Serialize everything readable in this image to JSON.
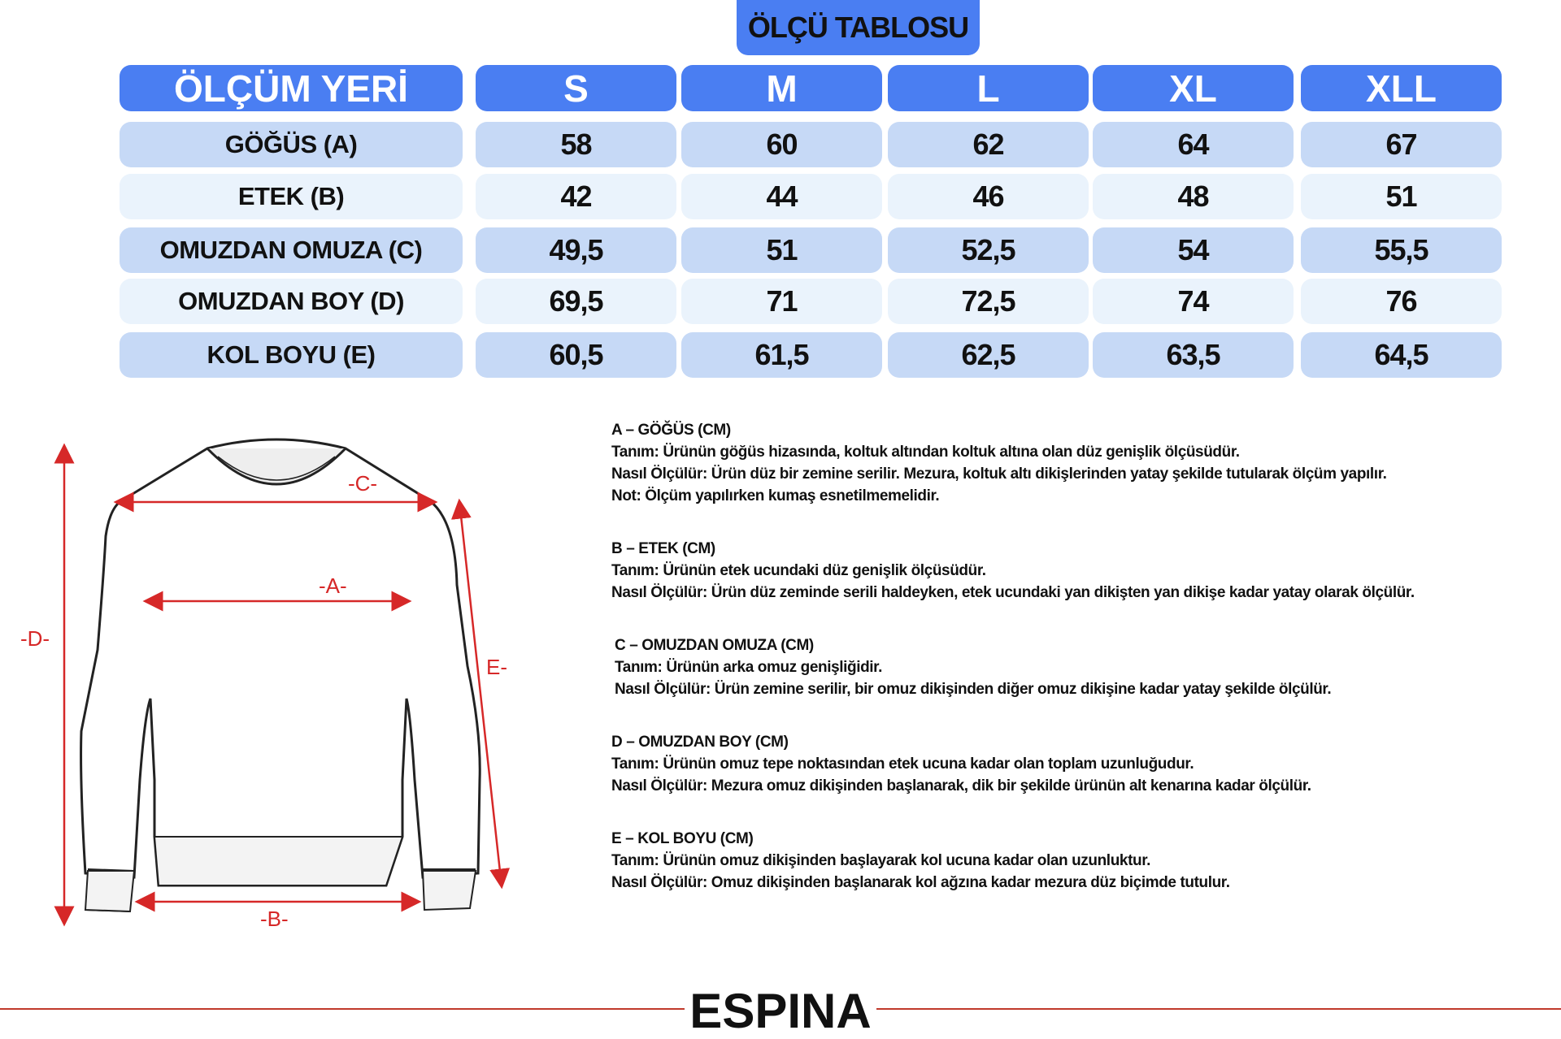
{
  "title": "ÖLÇÜ TABLOSU",
  "table": {
    "header_label": "ÖLÇÜM YERİ",
    "sizes": [
      "S",
      "M",
      "L",
      "XL",
      "XLL"
    ],
    "rows": [
      {
        "label": "GÖĞÜS (A)",
        "values": [
          "58",
          "60",
          "62",
          "64",
          "67"
        ]
      },
      {
        "label": "ETEK (B)",
        "values": [
          "42",
          "44",
          "46",
          "48",
          "51"
        ]
      },
      {
        "label": "OMUZDAN OMUZA (C)",
        "values": [
          "49,5",
          "51",
          "52,5",
          "54",
          "55,5"
        ]
      },
      {
        "label": "OMUZDAN BOY (D)",
        "values": [
          "69,5",
          "71",
          "72,5",
          "74",
          "76"
        ]
      },
      {
        "label": "KOL BOYU (E)",
        "values": [
          "60,5",
          "61,5",
          "62,5",
          "63,5",
          "64,5"
        ]
      }
    ]
  },
  "diagram": {
    "labels": {
      "a": "-A-",
      "b": "-B-",
      "c": "-C-",
      "d": "-D-",
      "e": "E-"
    }
  },
  "descriptions": [
    {
      "heading": "A – GÖĞÜS (CM)",
      "lines": [
        "Tanım: Ürünün göğüs hizasında, koltuk altından koltuk altına olan düz genişlik ölçüsüdür.",
        "Nasıl Ölçülür: Ürün düz bir zemine serilir. Mezura, koltuk altı dikişlerinden yatay şekilde tutularak ölçüm yapılır.",
        "Not: Ölçüm yapılırken kumaş esnetilmemelidir."
      ]
    },
    {
      "heading": "B – ETEK (CM)",
      "lines": [
        "Tanım: Ürünün etek ucundaki düz genişlik ölçüsüdür.",
        "Nasıl Ölçülür: Ürün düz zeminde serili haldeyken, etek ucundaki yan dikişten yan dikişe kadar yatay olarak ölçülür."
      ]
    },
    {
      "heading": "C – OMUZDAN OMUZA (CM)",
      "lines": [
        "Tanım: Ürünün arka omuz genişliğidir.",
        "Nasıl Ölçülür: Ürün zemine serilir, bir omuz dikişinden diğer omuz dikişine kadar yatay şekilde ölçülür."
      ]
    },
    {
      "heading": "D – OMUZDAN BOY (CM)",
      "lines": [
        "Tanım: Ürünün omuz tepe noktasından etek ucuna kadar olan toplam uzunluğudur.",
        "Nasıl Ölçülür: Mezura omuz dikişinden başlanarak, dik bir şekilde ürünün alt kenarına kadar ölçülür."
      ]
    },
    {
      "heading": "E – KOL BOYU (CM)",
      "lines": [
        "Tanım: Ürünün omuz dikişinden başlayarak kol ucuna kadar olan uzunluktur.",
        "Nasıl Ölçülür: Omuz dikişinden başlanarak kol ağzına kadar mezura düz biçimde tutulur."
      ]
    }
  ],
  "brand": "ESPINA",
  "colors": {
    "header": "#4a7ef2",
    "row_dark": "#c6d9f6",
    "row_light": "#eaf3fc",
    "arrow": "#d62828"
  }
}
